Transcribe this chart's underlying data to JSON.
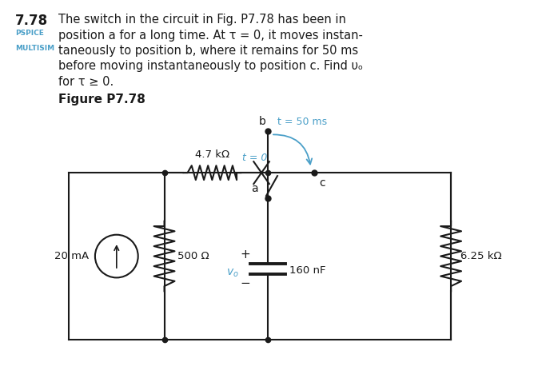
{
  "bg_color": "#ffffff",
  "text_color": "#1a1a1a",
  "cyan_color": "#4a9fc8",
  "R1_label": "4.7 kΩ",
  "R2_label": "500 Ω",
  "R3_label": "6.25 kΩ",
  "C_label": "160 nF",
  "I_label": "20 mA",
  "switch_t0": "t = 0",
  "switch_t50": "t = 50 ms",
  "pos_a": "a",
  "pos_b": "b",
  "pos_c": "c",
  "figure_label": "Figure P7.78",
  "pspice_label": "PSPICE",
  "multisim_label": "MULTISIM",
  "title_number": "7.78"
}
